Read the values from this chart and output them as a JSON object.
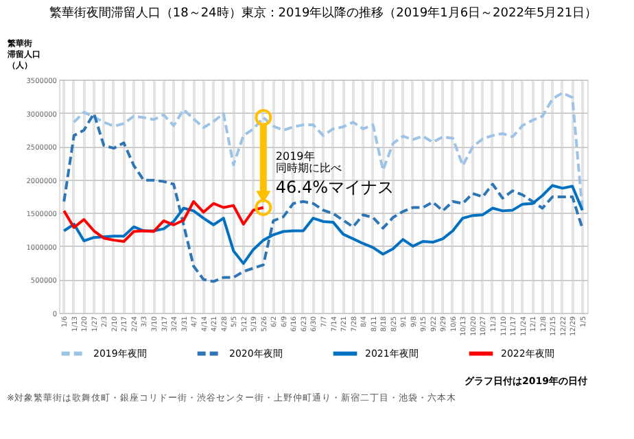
{
  "chart_data": {
    "type": "line",
    "title": "繁華街夜間滞留人口（18～24時）東京：2019年以降の推移（2019年1月6日～2022年5月21日）",
    "ylabel": "繁華街滞留人口（人）",
    "categories": [
      "1/6",
      "1/13",
      "1/20",
      "1/27",
      "2/3",
      "2/10",
      "2/17",
      "2/24",
      "3/3",
      "3/10",
      "3/17",
      "3/24",
      "3/31",
      "4/7",
      "4/14",
      "4/21",
      "4/28",
      "5/5",
      "5/12",
      "5/19",
      "5/26",
      "6/2",
      "6/9",
      "6/16",
      "6/23",
      "6/30",
      "7/7",
      "7/14",
      "7/21",
      "7/28",
      "8/4",
      "8/11",
      "8/18",
      "8/25",
      "9/1",
      "9/8",
      "9/15",
      "9/22",
      "9/29",
      "10/6",
      "10/13",
      "10/20",
      "10/27",
      "11/3",
      "11/10",
      "11/17",
      "11/24",
      "12/1",
      "12/8",
      "12/15",
      "12/22",
      "12/29",
      "1/5"
    ],
    "series": [
      {
        "name": "2019年夜間",
        "color": "#9dc3e6",
        "line_style": "dashed",
        "values": [
          null,
          2860000,
          3010000,
          2940000,
          2860000,
          2800000,
          2840000,
          2950000,
          2930000,
          2900000,
          2970000,
          2810000,
          3050000,
          2910000,
          2780000,
          2870000,
          2990000,
          2220000,
          2660000,
          2760000,
          2930000,
          2800000,
          2740000,
          2790000,
          2820000,
          2820000,
          2660000,
          2760000,
          2790000,
          2860000,
          2760000,
          2820000,
          2140000,
          2540000,
          2650000,
          2600000,
          2650000,
          2560000,
          2640000,
          2620000,
          2210000,
          2490000,
          2610000,
          2660000,
          2690000,
          2640000,
          2810000,
          2890000,
          2950000,
          3210000,
          3300000,
          3230000,
          1540000
        ]
      },
      {
        "name": "2020年夜間",
        "color": "#2e75b6",
        "line_style": "dashed",
        "values": [
          1670000,
          2660000,
          2740000,
          2990000,
          2510000,
          2470000,
          2550000,
          2210000,
          1990000,
          1990000,
          1970000,
          1930000,
          1320000,
          700000,
          500000,
          470000,
          530000,
          530000,
          620000,
          670000,
          720000,
          1380000,
          1440000,
          1640000,
          1670000,
          1640000,
          1540000,
          1490000,
          1390000,
          1290000,
          1470000,
          1430000,
          1270000,
          1430000,
          1520000,
          1580000,
          1580000,
          1660000,
          1530000,
          1670000,
          1640000,
          1790000,
          1740000,
          1930000,
          1720000,
          1830000,
          1770000,
          1670000,
          1570000,
          1740000,
          1740000,
          1740000,
          1270000
        ]
      },
      {
        "name": "2021年夜間",
        "color": "#0070c0",
        "line_style": "solid",
        "values": [
          1230000,
          1330000,
          1080000,
          1130000,
          1140000,
          1150000,
          1150000,
          1290000,
          1230000,
          1230000,
          1260000,
          1370000,
          1570000,
          1530000,
          1420000,
          1320000,
          1420000,
          930000,
          740000,
          950000,
          1090000,
          1170000,
          1220000,
          1230000,
          1230000,
          1420000,
          1370000,
          1360000,
          1180000,
          1110000,
          1040000,
          980000,
          880000,
          960000,
          1100000,
          1000000,
          1070000,
          1060000,
          1110000,
          1230000,
          1420000,
          1460000,
          1470000,
          1570000,
          1530000,
          1540000,
          1630000,
          1640000,
          1760000,
          1910000,
          1870000,
          1900000,
          1540000
        ]
      },
      {
        "name": "2022年夜間",
        "color": "#ff0000",
        "line_style": "solid",
        "values": [
          1530000,
          1280000,
          1400000,
          1230000,
          1120000,
          1090000,
          1070000,
          1220000,
          1230000,
          1220000,
          1380000,
          1320000,
          1390000,
          1670000,
          1510000,
          1640000,
          1580000,
          1610000,
          1330000,
          1540000,
          1580000,
          null,
          null,
          null,
          null,
          null,
          null,
          null,
          null,
          null,
          null,
          null,
          null,
          null,
          null,
          null,
          null,
          null,
          null,
          null,
          null,
          null,
          null,
          null,
          null,
          null,
          null,
          null,
          null,
          null,
          null,
          null,
          null
        ]
      }
    ],
    "ylim": [
      0,
      3500000
    ],
    "yticks": [
      0,
      500000,
      1000000,
      1500000,
      2000000,
      2500000,
      3000000,
      3500000
    ],
    "grid": true,
    "legend": "bottom",
    "annotations": [
      "2019年",
      "同時期に比べ",
      "46.4%マイナス",
      "グラフ日付は2019年の日付",
      "※対象繁華街は歌舞伎町・銀座コリドー街・渋谷センター街・上野仲町通り・新宿二丁目・池袋・六本木"
    ]
  }
}
